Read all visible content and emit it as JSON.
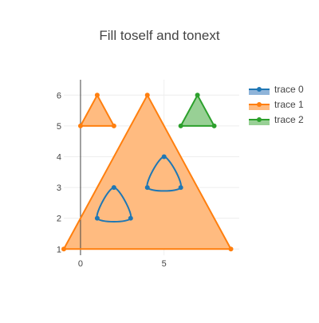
{
  "chart_data": {
    "type": "scatter",
    "title": "Fill toself and tonext",
    "xlabel": "",
    "ylabel": "",
    "xlim": [
      -1,
      9.5
    ],
    "ylim": [
      0.8,
      6.5
    ],
    "x_ticks": [
      0,
      5
    ],
    "y_ticks": [
      1,
      2,
      3,
      4,
      5,
      6
    ],
    "grid": true,
    "legend_position": "top-right",
    "series": [
      {
        "name": "trace 0",
        "color": "#1f77b4",
        "fill": "toself",
        "fill_color": "#8fb4d9",
        "line_shape": "spline",
        "x": [
          1,
          2,
          3,
          1
        ],
        "y": [
          2,
          3,
          2,
          2
        ]
      },
      {
        "name": "trace 0",
        "color": "#1f77b4",
        "fill": "toself",
        "fill_color": "#8fb4d9",
        "line_shape": "spline",
        "x": [
          4,
          5,
          6,
          4
        ],
        "y": [
          3,
          4,
          3,
          3
        ]
      },
      {
        "name": "trace 1",
        "color": "#ff7f0e",
        "fill": "toself",
        "fill_color": "#ffbb80",
        "line_shape": "linear",
        "x": [
          -1,
          4,
          9,
          -1
        ],
        "y": [
          1,
          6,
          1,
          1
        ]
      },
      {
        "name": "trace 1",
        "color": "#ff7f0e",
        "fill": "toself",
        "fill_color": "#ffbb80",
        "line_shape": "linear",
        "x": [
          0,
          1,
          2,
          0
        ],
        "y": [
          5,
          6,
          5,
          5
        ]
      },
      {
        "name": "trace 2",
        "color": "#2ca02c",
        "fill": "toself",
        "fill_color": "#98d095",
        "line_shape": "linear",
        "x": [
          6,
          7,
          8,
          6
        ],
        "y": [
          5,
          6,
          5,
          5
        ]
      }
    ],
    "legend": [
      {
        "name": "trace 0",
        "color": "#1f77b4",
        "fill_color": "#8fb4d9"
      },
      {
        "name": "trace 1",
        "color": "#ff7f0e",
        "fill_color": "#ffbb80"
      },
      {
        "name": "trace 2",
        "color": "#2ca02c",
        "fill_color": "#98d095"
      }
    ]
  }
}
